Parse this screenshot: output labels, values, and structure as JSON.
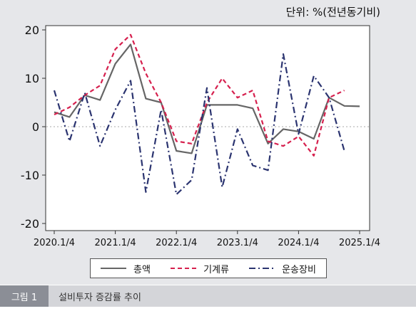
{
  "unit_label": "단위: %(전년동기비)",
  "caption": {
    "tag": "그림 1",
    "text": "설비투자 증감률 추이"
  },
  "legend": [
    {
      "name": "총액",
      "color": "#666666",
      "style": "solid"
    },
    {
      "name": "기계류",
      "color": "#d6204e",
      "style": "dash"
    },
    {
      "name": "운송장비",
      "color": "#2b3470",
      "style": "dashdot"
    }
  ],
  "chart_data": {
    "type": "line",
    "x_tick_labels": [
      "2020.1/4",
      "2021.1/4",
      "2022.1/4",
      "2023.1/4",
      "2024.1/4",
      "2025.1/4"
    ],
    "y_ticks": [
      20,
      10,
      0,
      -10,
      -20
    ],
    "ylim": [
      -20,
      20
    ],
    "xlim": [
      "2020.1/4",
      "2025.1/4"
    ],
    "x": [
      "2020.1/4",
      "2020.2/4",
      "2020.3/4",
      "2020.4/4",
      "2021.1/4",
      "2021.2/4",
      "2021.3/4",
      "2021.4/4",
      "2022.1/4",
      "2022.2/4",
      "2022.3/4",
      "2022.4/4",
      "2023.1/4",
      "2023.2/4",
      "2023.3/4",
      "2023.4/4",
      "2024.1/4",
      "2024.2/4",
      "2024.3/4",
      "2024.4/4",
      "2025.1/4"
    ],
    "zero_line": "dotted",
    "series": [
      {
        "name": "총액",
        "values": [
          3,
          2,
          6.5,
          5.5,
          13,
          17,
          5.8,
          5,
          -5,
          -5.5,
          4.5,
          4.5,
          4.5,
          3.8,
          -3.5,
          -0.5,
          -1,
          -2.5,
          6,
          4.3,
          4.2
        ]
      },
      {
        "name": "기계류",
        "values": [
          2.5,
          4,
          6.5,
          8.5,
          16,
          19,
          11,
          5,
          -3,
          -3.5,
          5,
          10,
          6,
          7.5,
          -3,
          -4,
          -2,
          -6,
          6,
          7.5,
          null
        ]
      },
      {
        "name": "운송장비",
        "values": [
          7.5,
          -3,
          7,
          -4,
          3.5,
          9.5,
          -13.5,
          3.5,
          -14,
          -11,
          8,
          -12.5,
          -0.5,
          -8,
          -9,
          15,
          -1.5,
          10.5,
          6,
          -5,
          null
        ]
      }
    ]
  }
}
